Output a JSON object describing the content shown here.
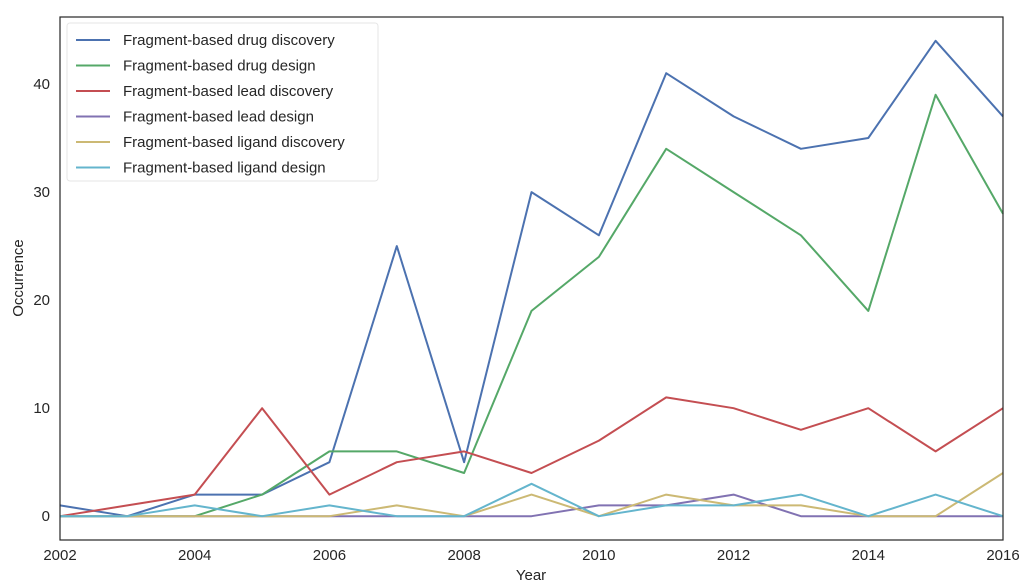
{
  "chart_data": {
    "type": "line",
    "title": "",
    "xlabel": "Year",
    "ylabel": "Occurrence",
    "xlim": [
      2002,
      2016
    ],
    "ylim": [
      -2.2,
      46.2
    ],
    "xticks": [
      2002,
      2004,
      2006,
      2008,
      2010,
      2012,
      2014,
      2016
    ],
    "yticks": [
      0,
      10,
      20,
      30,
      40
    ],
    "grid": false,
    "legend_position": "top-left",
    "x": [
      2002,
      2003,
      2004,
      2005,
      2006,
      2007,
      2008,
      2009,
      2010,
      2011,
      2012,
      2013,
      2014,
      2015,
      2016
    ],
    "series": [
      {
        "name": "Fragment-based drug discovery",
        "color": "#4c72b0",
        "values": [
          1,
          0,
          2,
          2,
          5,
          25,
          5,
          30,
          26,
          41,
          37,
          34,
          35,
          44,
          37
        ]
      },
      {
        "name": "Fragment-based drug design",
        "color": "#55a868",
        "values": [
          0,
          0,
          0,
          2,
          6,
          6,
          4,
          19,
          24,
          34,
          30,
          26,
          19,
          39,
          28
        ]
      },
      {
        "name": "Fragment-based lead discovery",
        "color": "#c44e52",
        "values": [
          0,
          1,
          2,
          10,
          2,
          5,
          6,
          4,
          7,
          11,
          10,
          8,
          10,
          6,
          10
        ]
      },
      {
        "name": "Fragment-based lead design",
        "color": "#8172b2",
        "values": [
          0,
          0,
          0,
          0,
          0,
          0,
          0,
          0,
          1,
          1,
          2,
          0,
          0,
          0,
          0
        ]
      },
      {
        "name": "Fragment-based ligand discovery",
        "color": "#ccb974",
        "values": [
          0,
          0,
          0,
          0,
          0,
          1,
          0,
          2,
          0,
          2,
          1,
          1,
          0,
          0,
          4
        ]
      },
      {
        "name": "Fragment-based ligand design",
        "color": "#64b5cd",
        "values": [
          0,
          0,
          1,
          0,
          1,
          0,
          0,
          3,
          0,
          1,
          1,
          2,
          0,
          2,
          0
        ]
      }
    ]
  }
}
